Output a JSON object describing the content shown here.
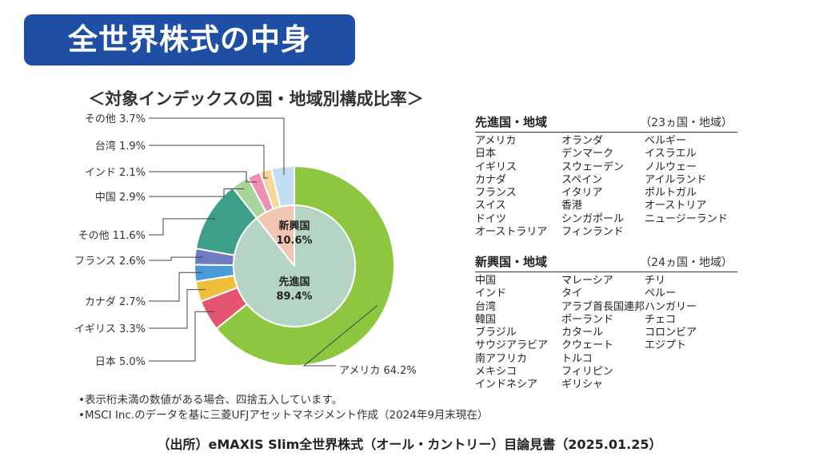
{
  "banner": {
    "title": "全世界株式の中身"
  },
  "chart_data": {
    "type": "pie",
    "title": "＜対象インデックスの国・地域別構成比率＞",
    "outer_ring": {
      "labels": [
        "アメリカ 64.2%",
        "日本 5.0%",
        "イギリス 3.3%",
        "カナダ 2.7%",
        "フランス 2.6%",
        "その他 11.6%",
        "中国 2.9%",
        "インド 2.1%",
        "台湾 1.9%",
        "その他 3.7%"
      ],
      "values": [
        64.2,
        5.0,
        3.3,
        2.7,
        2.6,
        11.6,
        2.9,
        2.1,
        1.9,
        3.7
      ],
      "colors": [
        "#8dc63f",
        "#e6556f",
        "#f0bf3a",
        "#4a9ad8",
        "#6f7bc0",
        "#3d9e8a",
        "#a9d59c",
        "#f08fb2",
        "#f5d79a",
        "#c2def3"
      ]
    },
    "inner_ring": {
      "values": [
        89.4,
        10.6
      ],
      "colors": [
        "#b4d5c4",
        "#f3c6b3"
      ],
      "labels": [
        {
          "name": "先進国",
          "value": "89.4%"
        },
        {
          "name": "新興国",
          "value": "10.6%"
        }
      ]
    }
  },
  "developed": {
    "title": "先進国・地域",
    "count": "（23ヵ国・地域）",
    "countries": [
      "アメリカ",
      "日本",
      "イギリス",
      "カナダ",
      "フランス",
      "スイス",
      "ドイツ",
      "オーストラリア",
      "オランダ",
      "デンマーク",
      "スウェーデン",
      "スペイン",
      "イタリア",
      "香港",
      "シンガポール",
      "フィンランド",
      "ベルギー",
      "イスラエル",
      "ノルウェー",
      "アイルランド",
      "ポルトガル",
      "オーストリア",
      "ニュージーランド"
    ]
  },
  "emerging": {
    "title": "新興国・地域",
    "count": "（24ヵ国・地域）",
    "countries": [
      "中国",
      "インド",
      "台湾",
      "韓国",
      "ブラジル",
      "サウジアラビア",
      "南アフリカ",
      "メキシコ",
      "インドネシア",
      "マレーシア",
      "タイ",
      "アラブ首長国連邦",
      "ポーランド",
      "カタール",
      "クウェート",
      "トルコ",
      "フィリピン",
      "ギリシャ",
      "チリ",
      "ペルー",
      "ハンガリー",
      "チェコ",
      "コロンビア",
      "エジプト"
    ]
  },
  "notes": [
    "•表示桁未満の数値がある場合、四捨五入しています。",
    "•MSCI Inc.のデータを基に三菱UFJアセットマネジメント作成（2024年9月末現在）"
  ],
  "source": "（出所）eMAXIS Slim全世界株式（オール・カントリー）目論見書（2025.01.25）"
}
